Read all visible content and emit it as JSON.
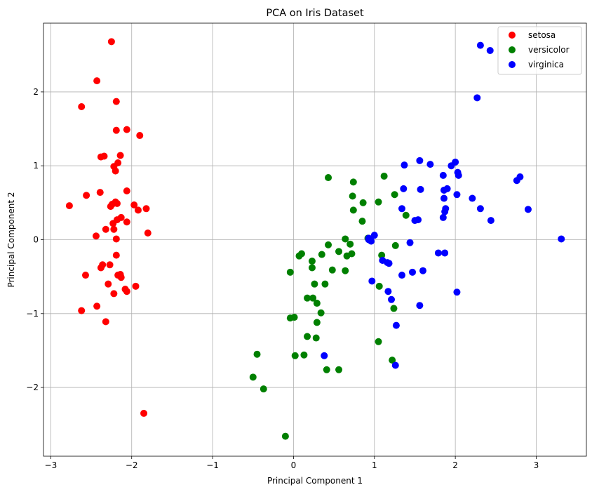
{
  "chart_data": {
    "type": "scatter",
    "title": "PCA on Iris Dataset",
    "xlabel": "Principal Component 1",
    "ylabel": "Principal Component 2",
    "xlim": [
      -3.09,
      3.62
    ],
    "ylim": [
      -2.93,
      2.93
    ],
    "xticks": [
      -3,
      -2,
      -1,
      0,
      1,
      2,
      3
    ],
    "yticks": [
      -2,
      -1,
      0,
      1,
      2
    ],
    "xtick_labels": [
      "−3",
      "−2",
      "−1",
      "0",
      "1",
      "2",
      "3"
    ],
    "ytick_labels": [
      "−2",
      "−1",
      "0",
      "1",
      "2"
    ],
    "grid": true,
    "legend_position": "top-right",
    "series": [
      {
        "name": "setosa",
        "color": "#ff0000",
        "points": [
          [
            -2.25,
            2.68
          ],
          [
            -2.43,
            2.15
          ],
          [
            -2.62,
            1.8
          ],
          [
            -2.19,
            1.87
          ],
          [
            -2.19,
            1.48
          ],
          [
            -2.06,
            1.49
          ],
          [
            -1.9,
            1.41
          ],
          [
            -2.38,
            1.12
          ],
          [
            -2.34,
            1.13
          ],
          [
            -2.14,
            1.14
          ],
          [
            -2.17,
            1.04
          ],
          [
            -2.22,
            0.99
          ],
          [
            -2.2,
            0.93
          ],
          [
            -2.06,
            0.66
          ],
          [
            -2.39,
            0.64
          ],
          [
            -2.56,
            0.6
          ],
          [
            -2.2,
            0.51
          ],
          [
            -2.18,
            0.49
          ],
          [
            -2.24,
            0.48
          ],
          [
            -1.97,
            0.47
          ],
          [
            -2.77,
            0.46
          ],
          [
            -2.26,
            0.45
          ],
          [
            -1.82,
            0.42
          ],
          [
            -1.92,
            0.4
          ],
          [
            -2.13,
            0.3
          ],
          [
            -2.18,
            0.27
          ],
          [
            -2.06,
            0.24
          ],
          [
            -2.23,
            0.22
          ],
          [
            -2.22,
            0.14
          ],
          [
            -2.32,
            0.14
          ],
          [
            -1.8,
            0.09
          ],
          [
            -2.44,
            0.05
          ],
          [
            -2.19,
            0.01
          ],
          [
            -2.19,
            -0.21
          ],
          [
            -2.27,
            -0.34
          ],
          [
            -2.36,
            -0.34
          ],
          [
            -2.38,
            -0.38
          ],
          [
            -2.14,
            -0.47
          ],
          [
            -2.17,
            -0.48
          ],
          [
            -2.57,
            -0.48
          ],
          [
            -2.13,
            -0.51
          ],
          [
            -2.29,
            -0.6
          ],
          [
            -1.95,
            -0.63
          ],
          [
            -2.08,
            -0.67
          ],
          [
            -2.06,
            -0.7
          ],
          [
            -2.22,
            -0.73
          ],
          [
            -2.43,
            -0.9
          ],
          [
            -2.62,
            -0.96
          ],
          [
            -2.32,
            -1.11
          ],
          [
            -1.85,
            -2.35
          ]
        ]
      },
      {
        "name": "versicolor",
        "color": "#008000",
        "points": [
          [
            1.12,
            0.86
          ],
          [
            0.43,
            0.84
          ],
          [
            0.74,
            0.78
          ],
          [
            1.25,
            0.61
          ],
          [
            0.73,
            0.59
          ],
          [
            1.05,
            0.51
          ],
          [
            0.86,
            0.5
          ],
          [
            0.74,
            0.4
          ],
          [
            1.39,
            0.33
          ],
          [
            0.85,
            0.25
          ],
          [
            0.64,
            0.01
          ],
          [
            0.92,
            0.02
          ],
          [
            0.43,
            -0.07
          ],
          [
            0.7,
            -0.06
          ],
          [
            1.26,
            -0.08
          ],
          [
            0.56,
            -0.16
          ],
          [
            0.72,
            -0.19
          ],
          [
            0.35,
            -0.2
          ],
          [
            0.1,
            -0.19
          ],
          [
            0.07,
            -0.22
          ],
          [
            0.66,
            -0.22
          ],
          [
            1.09,
            -0.21
          ],
          [
            0.23,
            -0.29
          ],
          [
            0.23,
            -0.38
          ],
          [
            0.48,
            -0.41
          ],
          [
            0.64,
            -0.42
          ],
          [
            -0.04,
            -0.44
          ],
          [
            0.39,
            -0.6
          ],
          [
            0.26,
            -0.6
          ],
          [
            1.06,
            -0.63
          ],
          [
            0.17,
            -0.79
          ],
          [
            0.24,
            -0.79
          ],
          [
            0.29,
            -0.86
          ],
          [
            1.24,
            -0.93
          ],
          [
            0.34,
            -0.99
          ],
          [
            -0.04,
            -1.06
          ],
          [
            0.01,
            -1.05
          ],
          [
            0.29,
            -1.12
          ],
          [
            0.17,
            -1.31
          ],
          [
            0.28,
            -1.33
          ],
          [
            1.05,
            -1.38
          ],
          [
            -0.45,
            -1.55
          ],
          [
            0.02,
            -1.57
          ],
          [
            0.13,
            -1.56
          ],
          [
            1.22,
            -1.63
          ],
          [
            0.41,
            -1.76
          ],
          [
            0.56,
            -1.76
          ],
          [
            -0.5,
            -1.86
          ],
          [
            -0.37,
            -2.02
          ],
          [
            -0.1,
            -2.66
          ]
        ]
      },
      {
        "name": "virginica",
        "color": "#0000ff",
        "points": [
          [
            2.31,
            2.63
          ],
          [
            2.43,
            2.56
          ],
          [
            2.27,
            1.92
          ],
          [
            1.56,
            1.07
          ],
          [
            2.0,
            1.05
          ],
          [
            1.69,
            1.02
          ],
          [
            1.37,
            1.01
          ],
          [
            1.95,
            1.0
          ],
          [
            2.03,
            0.91
          ],
          [
            2.04,
            0.87
          ],
          [
            1.85,
            0.87
          ],
          [
            2.8,
            0.85
          ],
          [
            2.76,
            0.8
          ],
          [
            1.9,
            0.69
          ],
          [
            1.36,
            0.69
          ],
          [
            1.57,
            0.68
          ],
          [
            1.86,
            0.67
          ],
          [
            2.02,
            0.61
          ],
          [
            1.86,
            0.56
          ],
          [
            2.21,
            0.56
          ],
          [
            1.34,
            0.42
          ],
          [
            1.88,
            0.42
          ],
          [
            2.31,
            0.42
          ],
          [
            2.9,
            0.41
          ],
          [
            1.87,
            0.38
          ],
          [
            1.85,
            0.3
          ],
          [
            1.54,
            0.27
          ],
          [
            1.5,
            0.26
          ],
          [
            2.44,
            0.26
          ],
          [
            1.0,
            0.06
          ],
          [
            0.93,
            0.02
          ],
          [
            0.93,
            0.0
          ],
          [
            0.96,
            -0.02
          ],
          [
            3.31,
            0.01
          ],
          [
            1.44,
            -0.04
          ],
          [
            1.79,
            -0.18
          ],
          [
            1.87,
            -0.18
          ],
          [
            1.1,
            -0.28
          ],
          [
            1.16,
            -0.31
          ],
          [
            1.18,
            -0.32
          ],
          [
            1.6,
            -0.42
          ],
          [
            1.47,
            -0.44
          ],
          [
            1.34,
            -0.48
          ],
          [
            0.97,
            -0.56
          ],
          [
            1.17,
            -0.7
          ],
          [
            2.02,
            -0.71
          ],
          [
            1.21,
            -0.81
          ],
          [
            1.56,
            -0.89
          ],
          [
            1.27,
            -1.16
          ],
          [
            0.38,
            -1.57
          ],
          [
            1.26,
            -1.7
          ]
        ]
      }
    ]
  }
}
